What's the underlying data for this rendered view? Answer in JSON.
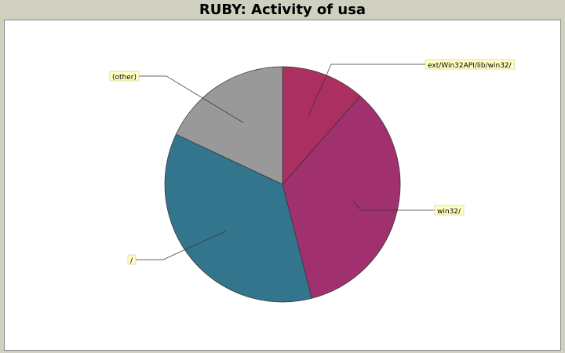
{
  "title": "RUBY: Activity of usa",
  "chart_data": {
    "type": "pie",
    "title": "RUBY: Activity of usa",
    "slices": [
      {
        "label": "ext/Win32API/lib/win32/",
        "value": 11.5,
        "color": "#ab3061"
      },
      {
        "label": "win32/",
        "value": 34.5,
        "color": "#a0306e"
      },
      {
        "label": "/",
        "value": 36.0,
        "color": "#33758c"
      },
      {
        "label": "(other)",
        "value": 18.0,
        "color": "#999999"
      }
    ],
    "start_angle_deg": 90,
    "direction": "clockwise",
    "legend": "none"
  }
}
